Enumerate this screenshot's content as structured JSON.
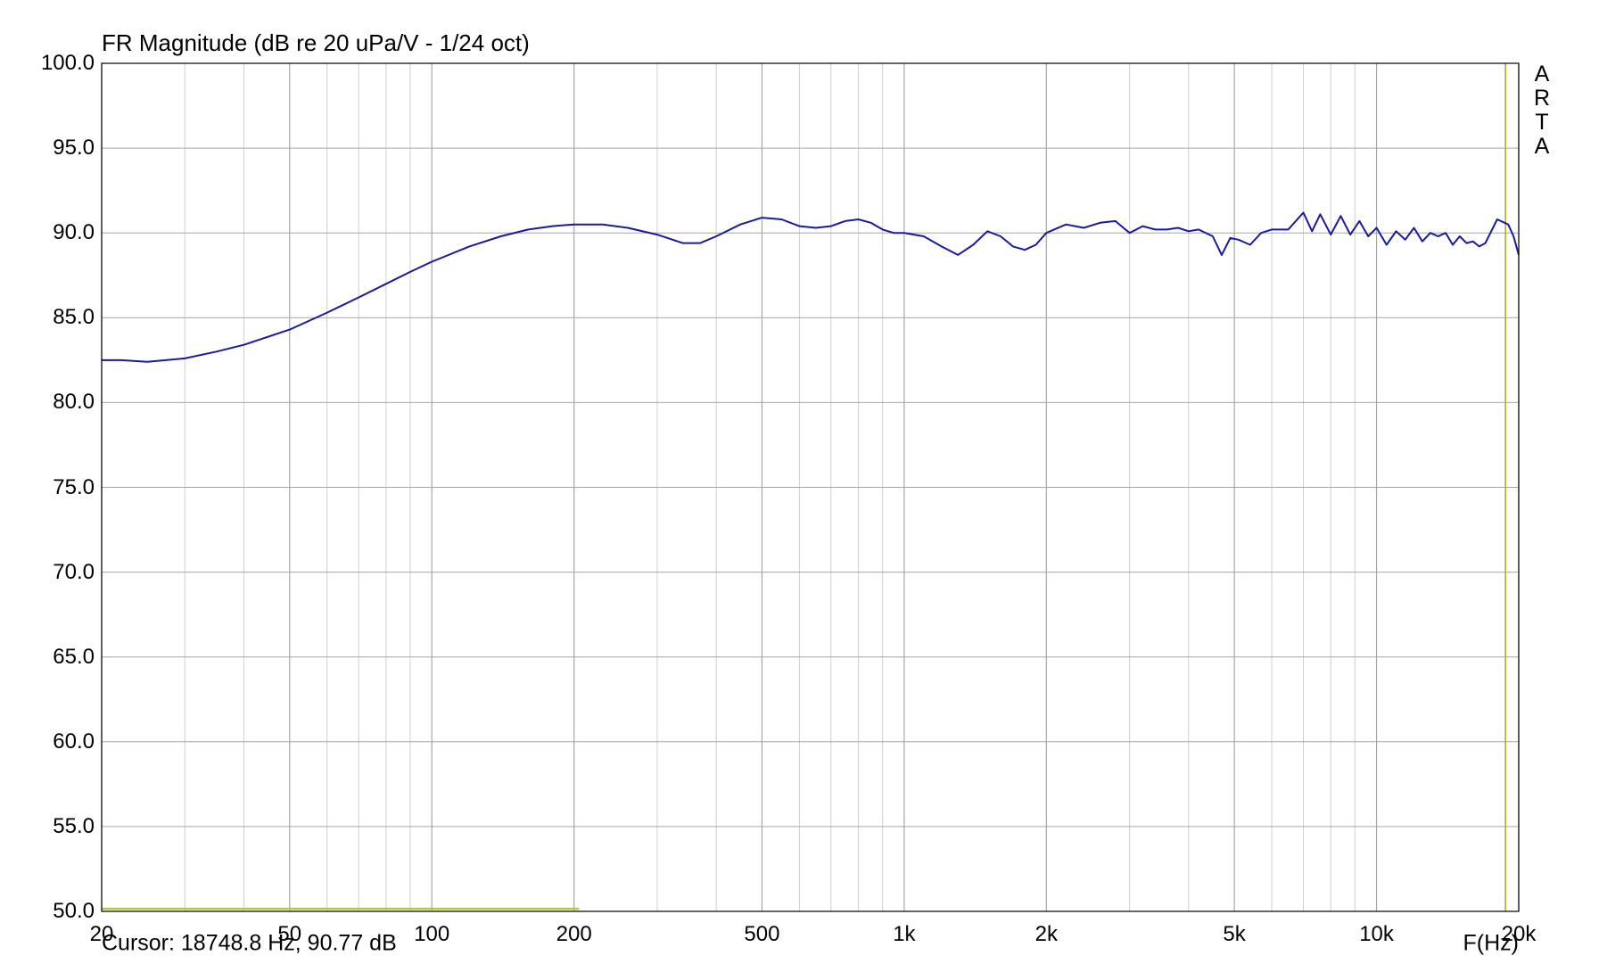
{
  "chart_data": {
    "type": "line",
    "title": "FR Magnitude (dB re 20 uPa/V - 1/24 oct)",
    "xlabel": "F(Hz)",
    "ylabel": "",
    "xscale": "log",
    "xlim": [
      20,
      20000
    ],
    "ylim": [
      50,
      100
    ],
    "grid": true,
    "yticks": [
      {
        "value": 100,
        "label": "100.0"
      },
      {
        "value": 95,
        "label": "95.0"
      },
      {
        "value": 90,
        "label": "90.0"
      },
      {
        "value": 85,
        "label": "85.0"
      },
      {
        "value": 80,
        "label": "80.0"
      },
      {
        "value": 75,
        "label": "75.0"
      },
      {
        "value": 70,
        "label": "70.0"
      },
      {
        "value": 65,
        "label": "65.0"
      },
      {
        "value": 60,
        "label": "60.0"
      },
      {
        "value": 55,
        "label": "55.0"
      },
      {
        "value": 50,
        "label": "50.0"
      }
    ],
    "xticks": [
      {
        "value": 20,
        "label": "20"
      },
      {
        "value": 50,
        "label": "50"
      },
      {
        "value": 100,
        "label": "100"
      },
      {
        "value": 200,
        "label": "200"
      },
      {
        "value": 500,
        "label": "500"
      },
      {
        "value": 1000,
        "label": "1k"
      },
      {
        "value": 2000,
        "label": "2k"
      },
      {
        "value": 5000,
        "label": "5k"
      },
      {
        "value": 10000,
        "label": "10k"
      },
      {
        "value": 20000,
        "label": "20k"
      }
    ],
    "series": [
      {
        "color": "#1a1a9c",
        "x": [
          20,
          22,
          25,
          30,
          35,
          40,
          50,
          60,
          70,
          80,
          90,
          100,
          120,
          140,
          160,
          180,
          200,
          230,
          260,
          300,
          340,
          370,
          400,
          450,
          500,
          550,
          600,
          650,
          700,
          750,
          800,
          850,
          900,
          950,
          1000,
          1100,
          1200,
          1300,
          1400,
          1500,
          1600,
          1700,
          1800,
          1900,
          2000,
          2200,
          2400,
          2600,
          2800,
          3000,
          3200,
          3400,
          3600,
          3800,
          4000,
          4200,
          4500,
          4700,
          4900,
          5100,
          5400,
          5700,
          6000,
          6500,
          7000,
          7300,
          7600,
          8000,
          8400,
          8800,
          9200,
          9600,
          10000,
          10500,
          11000,
          11500,
          12000,
          12500,
          13000,
          13500,
          14000,
          14500,
          15000,
          15500,
          16000,
          16500,
          17000,
          18000,
          19000,
          19500,
          20000
        ],
        "y": [
          82.5,
          82.5,
          82.4,
          82.6,
          83.0,
          83.4,
          84.3,
          85.3,
          86.2,
          87.0,
          87.7,
          88.3,
          89.2,
          89.8,
          90.2,
          90.4,
          90.5,
          90.5,
          90.3,
          89.9,
          89.4,
          89.4,
          89.8,
          90.5,
          90.9,
          90.8,
          90.4,
          90.3,
          90.4,
          90.7,
          90.8,
          90.6,
          90.2,
          90.0,
          90.0,
          89.8,
          89.2,
          88.7,
          89.3,
          90.1,
          89.8,
          89.2,
          89.0,
          89.3,
          90.0,
          90.5,
          90.3,
          90.6,
          90.7,
          90.0,
          90.4,
          90.2,
          90.2,
          90.3,
          90.1,
          90.2,
          89.8,
          88.7,
          89.7,
          89.6,
          89.3,
          90.0,
          90.2,
          90.2,
          91.2,
          90.1,
          91.1,
          89.9,
          91.0,
          89.9,
          90.7,
          89.8,
          90.3,
          89.3,
          90.1,
          89.6,
          90.3,
          89.5,
          90.0,
          89.8,
          90.0,
          89.3,
          89.8,
          89.4,
          89.5,
          89.2,
          89.4,
          90.8,
          90.5,
          89.8,
          88.7
        ]
      }
    ],
    "cursor": {
      "x": 18748.8,
      "y": 90.77,
      "color": "#b8a82a"
    },
    "highlight_band": {
      "x": [
        20,
        205
      ],
      "y": 50.1,
      "color": "#b8c83c"
    }
  },
  "cursor_readout": "Cursor: 18748.8 Hz, 90.77 dB",
  "brand_letters": [
    "A",
    "R",
    "T",
    "A"
  ]
}
